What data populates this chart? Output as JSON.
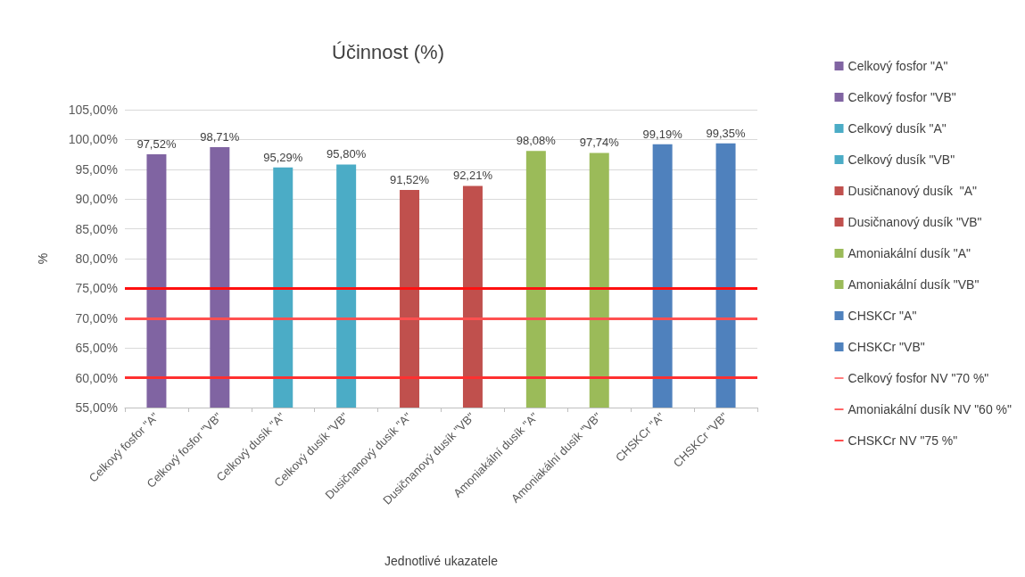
{
  "chart_data": {
    "type": "bar",
    "title": "Účinnost (%)",
    "xlabel": "Jednotlivé ukazatele",
    "ylabel": "%",
    "categories": [
      "Celkový fosfor \"A\"",
      "Celkový fosfor \"VB\"",
      "Celkový dusík \"A\"",
      "Celkový dusík \"VB\"",
      "Dusičnanový dusík \"A\"",
      "Dusičnanový dusík \"VB\"",
      "Amoniakální dusík \"A\"",
      "Amoniakální dusík \"VB\"",
      "CHSKCr \"A\"",
      "CHSKCr \"VB\""
    ],
    "series": [
      {
        "name": "Celkový fosfor \"A\"",
        "color": "#8064a2",
        "values": [
          97.52,
          null,
          null,
          null,
          null,
          null,
          null,
          null,
          null,
          null
        ],
        "value_labels": [
          "97,52%",
          null,
          null,
          null,
          null,
          null,
          null,
          null,
          null,
          null
        ]
      },
      {
        "name": "Celkový fosfor \"VB\"",
        "color": "#8064a2",
        "values": [
          null,
          98.71,
          null,
          null,
          null,
          null,
          null,
          null,
          null,
          null
        ],
        "value_labels": [
          null,
          "98,71%",
          null,
          null,
          null,
          null,
          null,
          null,
          null,
          null
        ]
      },
      {
        "name": "Celkový dusík \"A\"",
        "color": "#4bacc6",
        "values": [
          null,
          null,
          95.29,
          null,
          null,
          null,
          null,
          null,
          null,
          null
        ],
        "value_labels": [
          null,
          null,
          "95,29%",
          null,
          null,
          null,
          null,
          null,
          null,
          null
        ]
      },
      {
        "name": "Celkový dusík \"VB\"",
        "color": "#4bacc6",
        "values": [
          null,
          null,
          null,
          95.8,
          null,
          null,
          null,
          null,
          null,
          null
        ],
        "value_labels": [
          null,
          null,
          null,
          "95,80%",
          null,
          null,
          null,
          null,
          null,
          null
        ]
      },
      {
        "name": "Dusičnanový dusík  \"A\"",
        "color": "#c0504d",
        "values": [
          null,
          null,
          null,
          null,
          91.52,
          null,
          null,
          null,
          null,
          null
        ],
        "value_labels": [
          null,
          null,
          null,
          null,
          "91,52%",
          null,
          null,
          null,
          null,
          null
        ]
      },
      {
        "name": "Dusičnanový dusík \"VB\"",
        "color": "#c0504d",
        "values": [
          null,
          null,
          null,
          null,
          null,
          92.21,
          null,
          null,
          null,
          null
        ],
        "value_labels": [
          null,
          null,
          null,
          null,
          null,
          "92,21%",
          null,
          null,
          null,
          null
        ]
      },
      {
        "name": "Amoniakální dusík \"A\"",
        "color": "#9bbb59",
        "values": [
          null,
          null,
          null,
          null,
          null,
          null,
          98.08,
          null,
          null,
          null
        ],
        "value_labels": [
          null,
          null,
          null,
          null,
          null,
          null,
          "98,08%",
          null,
          null,
          null
        ]
      },
      {
        "name": "Amoniakální dusík \"VB\"",
        "color": "#9bbb59",
        "values": [
          null,
          null,
          null,
          null,
          null,
          null,
          null,
          97.74,
          null,
          null
        ],
        "value_labels": [
          null,
          null,
          null,
          null,
          null,
          null,
          null,
          "97,74%",
          null,
          null
        ]
      },
      {
        "name": "CHSKCr \"A\"",
        "color": "#4f81bd",
        "values": [
          null,
          null,
          null,
          null,
          null,
          null,
          null,
          null,
          99.19,
          null
        ],
        "value_labels": [
          null,
          null,
          null,
          null,
          null,
          null,
          null,
          null,
          "99,19%",
          null
        ]
      },
      {
        "name": "CHSKCr \"VB\"",
        "color": "#4f81bd",
        "values": [
          null,
          null,
          null,
          null,
          null,
          null,
          null,
          null,
          null,
          99.35
        ],
        "value_labels": [
          null,
          null,
          null,
          null,
          null,
          null,
          null,
          null,
          null,
          "99,35%"
        ]
      }
    ],
    "ref_lines": [
      {
        "axis": "y",
        "value": 70,
        "label": "Celkový fosfor NV \"70 %\"",
        "color": "#ff5050"
      },
      {
        "axis": "y",
        "value": 60,
        "label": "Amoniakální dusík NV \"60 %\"",
        "color": "#ff3030"
      },
      {
        "axis": "y",
        "value": 75,
        "label": "CHSKCr NV \"75 %\"",
        "color": "#ff1010"
      }
    ],
    "ylim": [
      55,
      105
    ],
    "yticks": [
      {
        "value": 55,
        "label": "55,00%"
      },
      {
        "value": 60,
        "label": "60,00%"
      },
      {
        "value": 65,
        "label": "65,00%"
      },
      {
        "value": 70,
        "label": "70,00%"
      },
      {
        "value": 75,
        "label": "75,00%"
      },
      {
        "value": 80,
        "label": "80,00%"
      },
      {
        "value": 85,
        "label": "85,00%"
      },
      {
        "value": 90,
        "label": "90,00%"
      },
      {
        "value": 95,
        "label": "95,00%"
      },
      {
        "value": 100,
        "label": "100,00%"
      },
      {
        "value": 105,
        "label": "105,00%"
      }
    ],
    "grid": "y",
    "legend": "right"
  }
}
